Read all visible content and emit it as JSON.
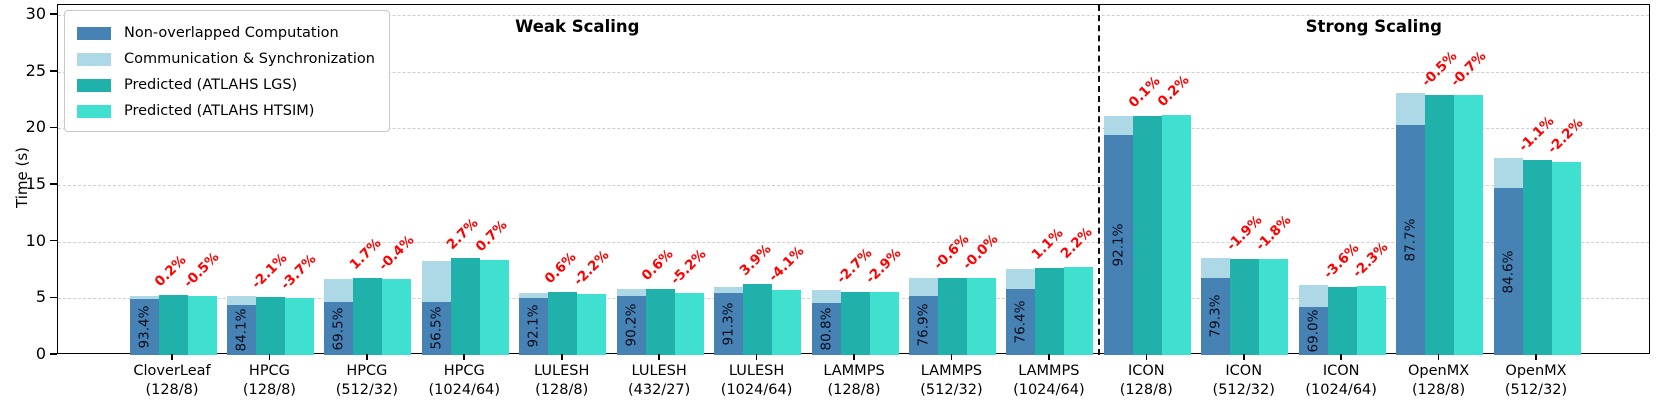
{
  "figure": {
    "ylabel": "Time (s)",
    "yticks": [
      0,
      5,
      10,
      15,
      20,
      25,
      30
    ],
    "sections": [
      {
        "label": "Weak Scaling",
        "from_group": 0,
        "to_group": 9
      },
      {
        "label": "Strong Scaling",
        "from_group": 10,
        "to_group": 14
      }
    ],
    "annotation_color": "#ff0000",
    "grid": "dashed-horizontal"
  },
  "legend": {
    "items": [
      {
        "label": "Non-overlapped Computation",
        "color": "#4682b4"
      },
      {
        "label": "Communication & Synchronization",
        "color": "#add8e6"
      },
      {
        "label": "Predicted (ATLAHS LGS)",
        "color": "#20b2aa"
      },
      {
        "label": "Predicted (ATLAHS HTSIM)",
        "color": "#40e0d0"
      }
    ]
  },
  "chart_data": {
    "type": "bar",
    "title": "",
    "xlabel": "",
    "ylabel": "Time (s)",
    "ylim": [
      0,
      30.9
    ],
    "legend_position": "upper-left",
    "series_meaning": {
      "measured": "stacked bar = Non-overlapped Computation + Communication & Synchronization",
      "lgs": "Predicted (ATLAHS LGS)",
      "htsim": "Predicted (ATLAHS HTSIM)"
    },
    "groups": [
      {
        "app": "CloverLeaf",
        "config": "(128/8)",
        "computation": 4.9,
        "communication": 0.35,
        "lgs": 5.26,
        "htsim": 5.22,
        "comp_pct": "93.4%",
        "lgs_err": "0.2%",
        "htsim_err": "-0.5%"
      },
      {
        "app": "HPCG",
        "config": "(128/8)",
        "computation": 4.37,
        "communication": 0.83,
        "lgs": 5.09,
        "htsim": 5.01,
        "comp_pct": "84.1%",
        "lgs_err": "-2.1%",
        "htsim_err": "-3.7%"
      },
      {
        "app": "HPCG",
        "config": "(512/32)",
        "computation": 4.66,
        "communication": 2.04,
        "lgs": 6.81,
        "htsim": 6.67,
        "comp_pct": "69.5%",
        "lgs_err": "1.7%",
        "htsim_err": "-0.4%"
      },
      {
        "app": "HPCG",
        "config": "(1024/64)",
        "computation": 4.69,
        "communication": 3.61,
        "lgs": 8.52,
        "htsim": 8.36,
        "comp_pct": "56.5%",
        "lgs_err": "2.7%",
        "htsim_err": "0.7%"
      },
      {
        "app": "LULESH",
        "config": "(128/8)",
        "computation": 5.07,
        "communication": 0.43,
        "lgs": 5.53,
        "htsim": 5.38,
        "comp_pct": "92.1%",
        "lgs_err": "0.6%",
        "htsim_err": "-2.2%"
      },
      {
        "app": "LULESH",
        "config": "(432/27)",
        "computation": 5.23,
        "communication": 0.57,
        "lgs": 5.83,
        "htsim": 5.5,
        "comp_pct": "90.2%",
        "lgs_err": "0.6%",
        "htsim_err": "-5.2%"
      },
      {
        "app": "LULESH",
        "config": "(1024/64)",
        "computation": 5.48,
        "communication": 0.52,
        "lgs": 6.23,
        "htsim": 5.75,
        "comp_pct": "91.3%",
        "lgs_err": "3.9%",
        "htsim_err": "-4.1%"
      },
      {
        "app": "LAMMPS",
        "config": "(128/8)",
        "computation": 4.61,
        "communication": 1.09,
        "lgs": 5.55,
        "htsim": 5.53,
        "comp_pct": "80.8%",
        "lgs_err": "-2.7%",
        "htsim_err": "-2.9%"
      },
      {
        "app": "LAMMPS",
        "config": "(512/32)",
        "computation": 5.23,
        "communication": 1.57,
        "lgs": 6.76,
        "htsim": 6.8,
        "comp_pct": "76.9%",
        "lgs_err": "-0.6%",
        "htsim_err": "-0.0%"
      },
      {
        "app": "LAMMPS",
        "config": "(1024/64)",
        "computation": 5.81,
        "communication": 1.79,
        "lgs": 7.68,
        "htsim": 7.77,
        "comp_pct": "76.4%",
        "lgs_err": "1.1%",
        "htsim_err": "2.2%"
      },
      {
        "app": "ICON",
        "config": "(128/8)",
        "computation": 19.43,
        "communication": 1.67,
        "lgs": 21.12,
        "htsim": 21.14,
        "comp_pct": "92.1%",
        "lgs_err": "0.1%",
        "htsim_err": "0.2%"
      },
      {
        "app": "ICON",
        "config": "(512/32)",
        "computation": 6.82,
        "communication": 1.78,
        "lgs": 8.44,
        "htsim": 8.45,
        "comp_pct": "79.3%",
        "lgs_err": "-1.9%",
        "htsim_err": "-1.8%"
      },
      {
        "app": "ICON",
        "config": "(1024/64)",
        "computation": 4.28,
        "communication": 1.92,
        "lgs": 5.98,
        "htsim": 6.06,
        "comp_pct": "69.0%",
        "lgs_err": "-3.6%",
        "htsim_err": "-2.3%"
      },
      {
        "app": "OpenMX",
        "config": "(128/8)",
        "computation": 20.26,
        "communication": 2.84,
        "lgs": 22.98,
        "htsim": 22.94,
        "comp_pct": "87.7%",
        "lgs_err": "-0.5%",
        "htsim_err": "-0.7%"
      },
      {
        "app": "OpenMX",
        "config": "(512/32)",
        "computation": 14.72,
        "communication": 2.68,
        "lgs": 17.21,
        "htsim": 17.02,
        "comp_pct": "84.6%",
        "lgs_err": "-1.1%",
        "htsim_err": "-2.2%"
      }
    ]
  }
}
